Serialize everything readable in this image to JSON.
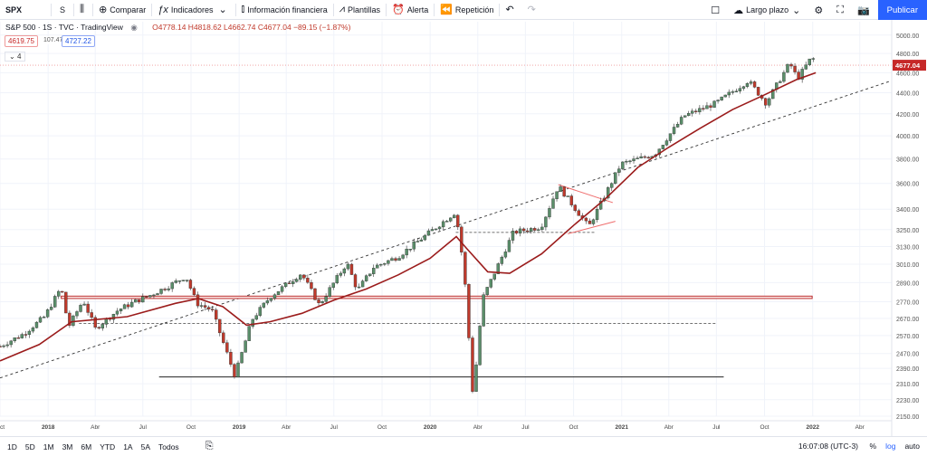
{
  "toolbar": {
    "symbol": "SPX",
    "interval": "S",
    "compare": "Comparar",
    "indicators": "Indicadores",
    "financials": "Información financiera",
    "templates": "Plantillas",
    "alert": "Alerta",
    "replay": "Repetición",
    "layout_name": "Largo plazo",
    "publish": "Publicar",
    "icons": [
      "bar-style-icon",
      "plus-circle-icon",
      "fx-icon",
      "financials-icon",
      "templates-icon",
      "alarm-icon",
      "replay-icon",
      "undo-icon",
      "redo-icon",
      "square-icon",
      "cloud-icon",
      "gear-icon",
      "fullscreen-icon",
      "camera-icon"
    ]
  },
  "legend": {
    "title": "S&P 500 · 1S · TVC · TradingView",
    "ohlc": "O4778.14 H4818.62 L4662.74 C4677.04 −89.15 (−1.87%)",
    "bid": "4619.75",
    "spread": "107.47",
    "ask": "4727.22",
    "collapse": "4"
  },
  "bottom": {
    "ranges": [
      "1D",
      "5D",
      "1M",
      "3M",
      "6M",
      "YTD",
      "1A",
      "5A",
      "Todos"
    ],
    "clock": "16:07:08 (UTC-3)",
    "percent": "%",
    "log": "log",
    "auto": "auto"
  },
  "chart_data": {
    "type": "candlestick",
    "timeframe": "1W",
    "y_scale": "log",
    "ylim": [
      2150,
      5150
    ],
    "y_ticks": [
      2150,
      2230,
      2310,
      2390,
      2470,
      2570,
      2670,
      2770,
      2890,
      3010,
      3130,
      3250,
      3400,
      3600,
      3800,
      4000,
      4200,
      4400,
      4600,
      4800,
      5000
    ],
    "y_tick_labels": [
      "2150.00",
      "2230.00",
      "2310.00",
      "2390.00",
      "2470.00",
      "2570.00",
      "2670.00",
      "2770.00",
      "2890.00",
      "3010.00",
      "3130.00",
      "3250.00",
      "3400.00",
      "3600.00",
      "3800.00",
      "4000.00",
      "4200.00",
      "4400.00",
      "4600.00",
      "4800.00",
      "5000.00"
    ],
    "x_range": [
      "2017-10-01",
      "2022-06-01"
    ],
    "x_ticks": [
      {
        "date": "2017-10-01",
        "label": "Oct"
      },
      {
        "date": "2018-01-01",
        "label": "2018"
      },
      {
        "date": "2018-04-01",
        "label": "Abr"
      },
      {
        "date": "2018-07-01",
        "label": "Jul"
      },
      {
        "date": "2018-10-01",
        "label": "Oct"
      },
      {
        "date": "2019-01-01",
        "label": "2019"
      },
      {
        "date": "2019-04-01",
        "label": "Abr"
      },
      {
        "date": "2019-07-01",
        "label": "Jul"
      },
      {
        "date": "2019-10-01",
        "label": "Oct"
      },
      {
        "date": "2020-01-01",
        "label": "2020"
      },
      {
        "date": "2020-04-01",
        "label": "Abr"
      },
      {
        "date": "2020-07-01",
        "label": "Jul"
      },
      {
        "date": "2020-10-01",
        "label": "Oct"
      },
      {
        "date": "2021-01-01",
        "label": "2021"
      },
      {
        "date": "2021-04-01",
        "label": "Abr"
      },
      {
        "date": "2021-07-01",
        "label": "Jul"
      },
      {
        "date": "2021-10-01",
        "label": "Oct"
      },
      {
        "date": "2022-01-01",
        "label": "2022"
      },
      {
        "date": "2022-04-01",
        "label": "Abr"
      }
    ],
    "last_price": "4677.04",
    "series": [
      {
        "name": "",
        "kind": "weekly close path",
        "points": [
          [
            "2017-10-01",
            2510
          ],
          [
            "2017-11-15",
            2580
          ],
          [
            "2017-12-25",
            2680
          ],
          [
            "2018-01-26",
            2860
          ],
          [
            "2018-02-09",
            2620
          ],
          [
            "2018-03-09",
            2780
          ],
          [
            "2018-04-01",
            2610
          ],
          [
            "2018-05-15",
            2720
          ],
          [
            "2018-06-15",
            2770
          ],
          [
            "2018-07-15",
            2810
          ],
          [
            "2018-08-20",
            2870
          ],
          [
            "2018-09-21",
            2930
          ],
          [
            "2018-10-12",
            2760
          ],
          [
            "2018-11-10",
            2720
          ],
          [
            "2018-12-24",
            2350
          ],
          [
            "2019-01-25",
            2660
          ],
          [
            "2019-03-01",
            2800
          ],
          [
            "2019-04-30",
            2950
          ],
          [
            "2019-06-03",
            2750
          ],
          [
            "2019-07-26",
            3020
          ],
          [
            "2019-08-15",
            2840
          ],
          [
            "2019-09-15",
            2990
          ],
          [
            "2019-10-31",
            3060
          ],
          [
            "2019-12-31",
            3230
          ],
          [
            "2020-02-19",
            3380
          ],
          [
            "2020-03-06",
            2970
          ],
          [
            "2020-03-23",
            2240
          ],
          [
            "2020-04-10",
            2790
          ],
          [
            "2020-06-08",
            3230
          ],
          [
            "2020-07-31",
            3270
          ],
          [
            "2020-09-02",
            3580
          ],
          [
            "2020-10-30",
            3270
          ],
          [
            "2020-12-31",
            3760
          ],
          [
            "2021-03-05",
            3840
          ],
          [
            "2021-04-30",
            4180
          ],
          [
            "2021-06-30",
            4300
          ],
          [
            "2021-08-31",
            4520
          ],
          [
            "2021-10-04",
            4300
          ],
          [
            "2021-11-18",
            4700
          ],
          [
            "2021-12-03",
            4540
          ],
          [
            "2021-12-31",
            4770
          ],
          [
            "2022-01-07",
            4677
          ]
        ]
      },
      {
        "name": "",
        "kind": "moving average",
        "points": [
          [
            "2017-10-01",
            2430
          ],
          [
            "2017-12-15",
            2520
          ],
          [
            "2018-02-15",
            2650
          ],
          [
            "2018-06-01",
            2680
          ],
          [
            "2018-09-01",
            2760
          ],
          [
            "2018-10-15",
            2790
          ],
          [
            "2018-12-01",
            2740
          ],
          [
            "2019-01-15",
            2630
          ],
          [
            "2019-03-01",
            2650
          ],
          [
            "2019-05-01",
            2700
          ],
          [
            "2019-07-01",
            2780
          ],
          [
            "2019-09-01",
            2850
          ],
          [
            "2019-11-01",
            2940
          ],
          [
            "2020-01-01",
            3050
          ],
          [
            "2020-02-20",
            3200
          ],
          [
            "2020-03-10",
            3120
          ],
          [
            "2020-04-20",
            2960
          ],
          [
            "2020-06-01",
            2950
          ],
          [
            "2020-08-01",
            3080
          ],
          [
            "2020-10-01",
            3280
          ],
          [
            "2020-12-01",
            3480
          ],
          [
            "2021-02-01",
            3730
          ],
          [
            "2021-04-01",
            3900
          ],
          [
            "2021-06-01",
            4070
          ],
          [
            "2021-08-01",
            4240
          ],
          [
            "2021-10-01",
            4380
          ],
          [
            "2021-12-01",
            4530
          ],
          [
            "2022-01-07",
            4600
          ]
        ]
      }
    ],
    "drawings": [
      {
        "kind": "dashed trend line",
        "from": [
          "2017-10-01",
          2340
        ],
        "to": [
          "2022-06-01",
          4520
        ]
      },
      {
        "kind": "horizontal zone",
        "from": "2018-01-26",
        "to": "2021-12-31",
        "y": [
          2790,
          2805
        ]
      },
      {
        "kind": "dashed level",
        "from": "2018-03-01",
        "to": "2021-06-30",
        "y": 2640
      },
      {
        "kind": "solid level",
        "from": "2018-08-01",
        "to": "2021-07-15",
        "y": 2345
      },
      {
        "kind": "dashed level",
        "from": "2020-02-19",
        "to": "2020-11-10",
        "y": 3230
      },
      {
        "kind": "triangle upper",
        "from": [
          "2020-09-02",
          3590
        ],
        "to": [
          "2020-12-15",
          3450
        ]
      },
      {
        "kind": "triangle lower",
        "from": [
          "2020-09-20",
          3220
        ],
        "to": [
          "2020-12-20",
          3310
        ]
      },
      {
        "kind": "price line",
        "y": 4677
      }
    ]
  }
}
